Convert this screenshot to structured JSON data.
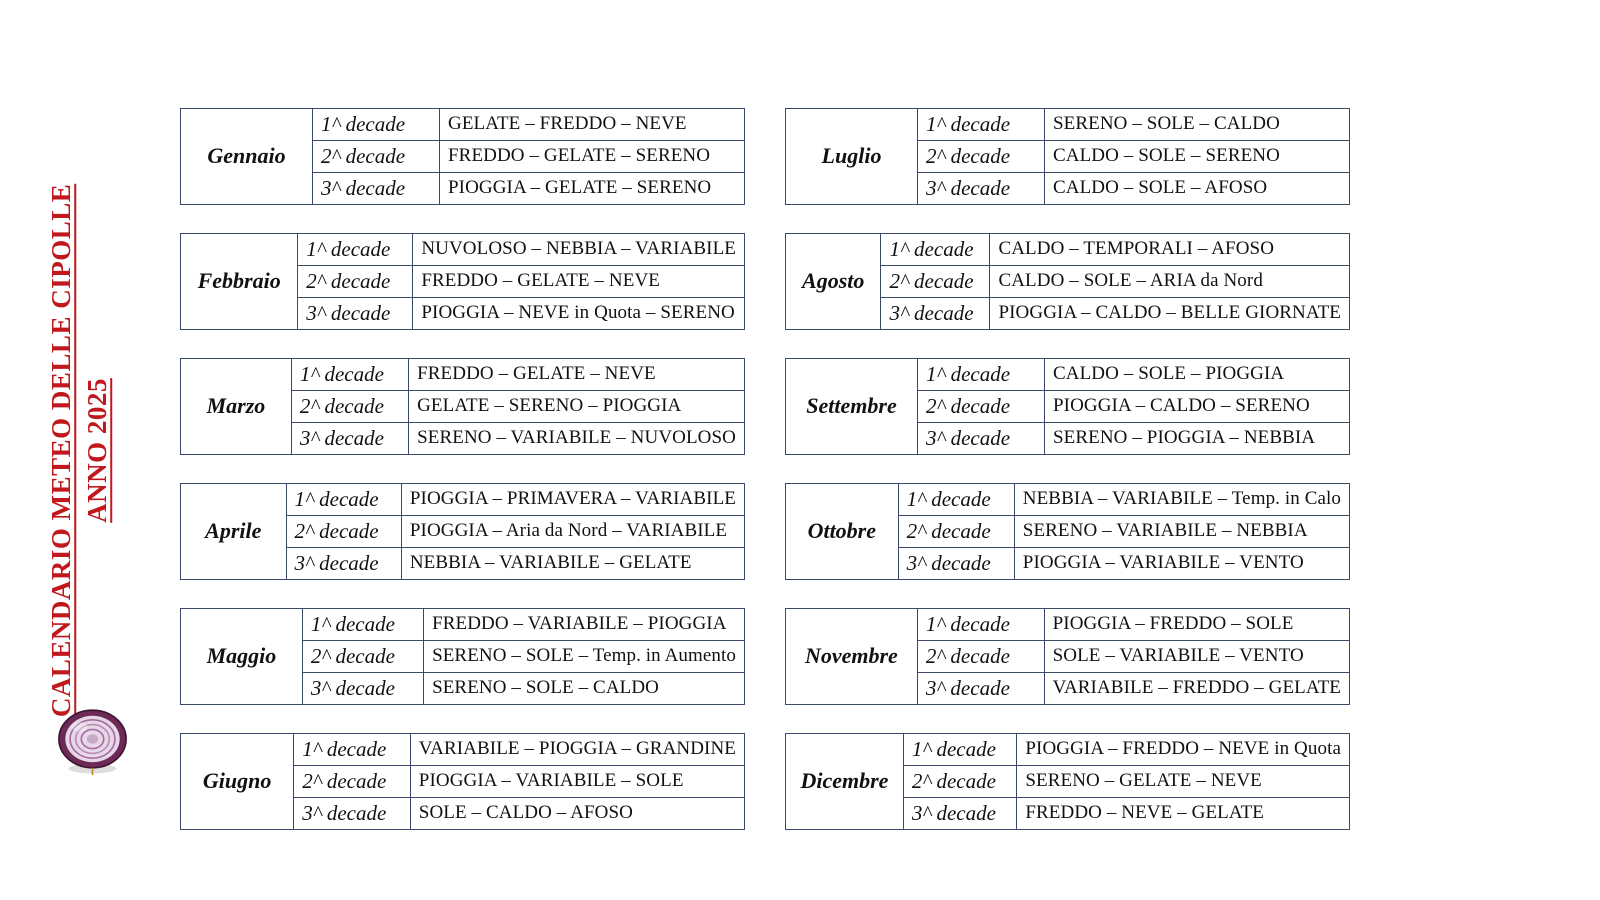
{
  "title": {
    "line1": "CALENDARIO METEO DELLE CIPOLLE",
    "line2": "ANNO  2025",
    "color": "#c0181d"
  },
  "icon_name": "onion-icon",
  "border_color": "#3b4a6b",
  "background_color": "#ffffff",
  "decade_labels": [
    "1^ decade",
    "2^ decade",
    "3^ decade"
  ],
  "columns": [
    [
      {
        "name": "Gennaio",
        "forecasts": [
          "GELATE – FREDDO – NEVE",
          "FREDDO – GELATE – SERENO",
          "PIOGGIA – GELATE – SERENO"
        ]
      },
      {
        "name": "Febbraio",
        "forecasts": [
          "NUVOLOSO – NEBBIA – VARIABILE",
          "FREDDO – GELATE – NEVE",
          "PIOGGIA – NEVE in Quota – SERENO"
        ]
      },
      {
        "name": "Marzo",
        "forecasts": [
          "FREDDO – GELATE – NEVE",
          "GELATE – SERENO – PIOGGIA",
          "SERENO – VARIABILE – NUVOLOSO"
        ]
      },
      {
        "name": "Aprile",
        "forecasts": [
          "PIOGGIA – PRIMAVERA – VARIABILE",
          "PIOGGIA – Aria da Nord – VARIABILE",
          "NEBBIA – VARIABILE – GELATE"
        ]
      },
      {
        "name": "Maggio",
        "forecasts": [
          "FREDDO – VARIABILE – PIOGGIA",
          "SERENO – SOLE – Temp. in Aumento",
          "SERENO – SOLE – CALDO"
        ]
      },
      {
        "name": "Giugno",
        "forecasts": [
          "VARIABILE – PIOGGIA – GRANDINE",
          "PIOGGIA – VARIABILE – SOLE",
          "SOLE – CALDO – AFOSO"
        ]
      }
    ],
    [
      {
        "name": "Luglio",
        "forecasts": [
          "SERENO – SOLE – CALDO",
          "CALDO – SOLE – SERENO",
          "CALDO – SOLE – AFOSO"
        ]
      },
      {
        "name": "Agosto",
        "forecasts": [
          "CALDO – TEMPORALI – AFOSO",
          "CALDO – SOLE – ARIA da Nord",
          "PIOGGIA – CALDO – BELLE GIORNATE"
        ]
      },
      {
        "name": "Settembre",
        "forecasts": [
          "CALDO – SOLE – PIOGGIA",
          "PIOGGIA – CALDO – SERENO",
          "SERENO – PIOGGIA – NEBBIA"
        ]
      },
      {
        "name": "Ottobre",
        "forecasts": [
          "NEBBIA – VARIABILE – Temp. in Calo",
          "SERENO – VARIABILE – NEBBIA",
          "PIOGGIA – VARIABILE – VENTO"
        ]
      },
      {
        "name": "Novembre",
        "forecasts": [
          "PIOGGIA – FREDDO – SOLE",
          "SOLE – VARIABILE – VENTO",
          "VARIABILE – FREDDO – GELATE"
        ]
      },
      {
        "name": "Dicembre",
        "forecasts": [
          "PIOGGIA – FREDDO – NEVE in Quota",
          "SERENO – GELATE – NEVE",
          "FREDDO – NEVE – GELATE"
        ]
      }
    ]
  ]
}
